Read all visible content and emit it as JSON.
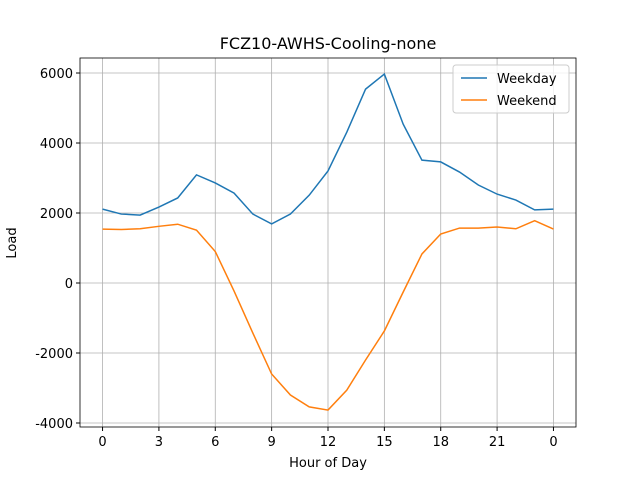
{
  "chart_data": {
    "type": "line",
    "title": "FCZ10-AWHS-Cooling-none",
    "xlabel": "Hour of Day",
    "ylabel": "Load",
    "x": [
      0,
      1,
      2,
      3,
      4,
      5,
      6,
      7,
      8,
      9,
      10,
      11,
      12,
      13,
      14,
      15,
      16,
      17,
      18,
      19,
      20,
      21,
      22,
      23,
      24
    ],
    "series": [
      {
        "name": "Weekday",
        "color": "#1f77b4",
        "values": [
          2110,
          1970,
          1940,
          2170,
          2430,
          3090,
          2860,
          2570,
          1970,
          1690,
          1970,
          2510,
          3200,
          4310,
          5540,
          5970,
          4540,
          3510,
          3460,
          3170,
          2800,
          2540,
          2370,
          2090,
          2110
        ]
      },
      {
        "name": "Weekend",
        "color": "#ff7f0e",
        "values": [
          1540,
          1530,
          1550,
          1620,
          1680,
          1510,
          900,
          -230,
          -1430,
          -2600,
          -3200,
          -3540,
          -3630,
          -3060,
          -2200,
          -1370,
          -260,
          830,
          1400,
          1570,
          1570,
          1600,
          1550,
          1780,
          1540
        ]
      }
    ],
    "xlim": [
      -1.2,
      25.2
    ],
    "xticks": [
      0,
      3,
      6,
      9,
      12,
      15,
      18,
      21,
      {
        "value": 24,
        "label": "0"
      }
    ],
    "ylim": [
      -4114,
      6429
    ],
    "yticks": [
      -4000,
      -2000,
      0,
      2000,
      4000,
      6000
    ],
    "grid": true,
    "legend": "upper right"
  }
}
